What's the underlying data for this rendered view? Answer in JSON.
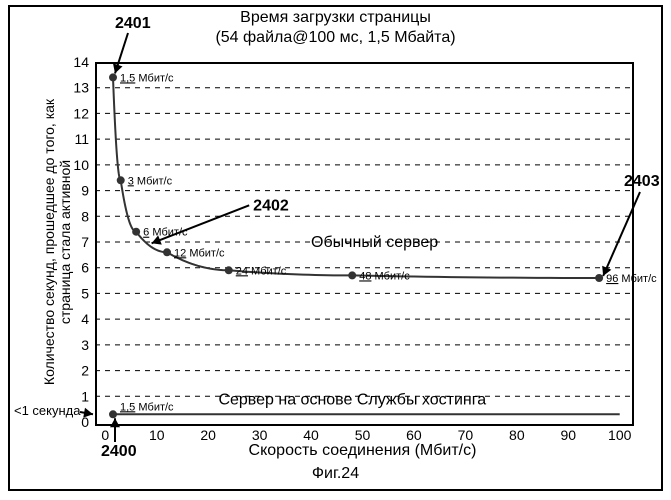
{
  "title_line1": "Время загрузки страницы",
  "title_line2": "(54 файла@100 мс, 1,5 Мбайта)",
  "x_axis_label": "Скорость соединения (Мбит/с)",
  "y_axis_label": "Количество секунд, прошедшее до того, как страница стала активной",
  "figure_caption": "Фиг.24",
  "subsecond_label": "<1 секунда",
  "chart": {
    "type": "line",
    "background_color": "#ffffff",
    "grid_color": "#000000",
    "grid_dash": "5 5",
    "x": {
      "min": -2,
      "max": 102,
      "ticks": [
        0,
        10,
        20,
        30,
        40,
        50,
        60,
        70,
        80,
        90,
        100
      ],
      "fontsize": 14
    },
    "y": {
      "min": 0,
      "max": 14,
      "ticks": [
        0,
        1,
        2,
        3,
        4,
        5,
        6,
        7,
        8,
        9,
        10,
        11,
        12,
        13,
        14
      ],
      "fontsize": 14
    },
    "curve_color": "#333333",
    "curve_width": 2,
    "marker_color": "#333333",
    "marker_radius": 4,
    "point_label_fontsize": 11,
    "point_label_unit": "Мбит/с",
    "series_normal": {
      "label": "Обычный сервер",
      "points": [
        {
          "x": 1.5,
          "y": 13.4,
          "v": "1,5"
        },
        {
          "x": 3,
          "y": 9.4,
          "v": "3"
        },
        {
          "x": 6,
          "y": 7.4,
          "v": "6"
        },
        {
          "x": 12,
          "y": 6.6,
          "v": "12"
        },
        {
          "x": 24,
          "y": 5.9,
          "v": "24"
        },
        {
          "x": 48,
          "y": 5.7,
          "v": "48"
        },
        {
          "x": 96,
          "y": 5.6,
          "v": "96"
        }
      ]
    },
    "series_hosting": {
      "label": "Сервер на основе Службы хостинга",
      "y": 0.3,
      "first_point_value": "1,5"
    }
  },
  "callouts": {
    "c2400": "2400",
    "c2401": "2401",
    "c2402": "2402",
    "c2403": "2403"
  },
  "colors": {
    "frame": "#000000",
    "text": "#000000",
    "bg": "#ffffff"
  },
  "typography": {
    "title_fontsize": 16,
    "axis_label_fontsize": 14,
    "callout_fontsize": 16,
    "series_label_fontsize": 16
  }
}
